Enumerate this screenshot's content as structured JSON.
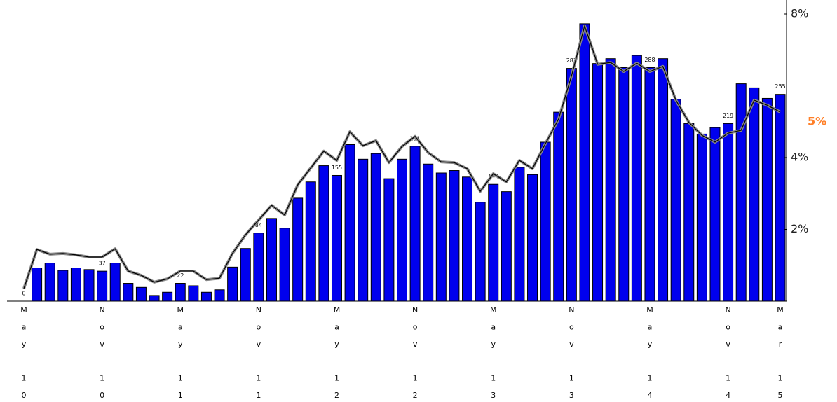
{
  "chart_data": {
    "type": "bar_line",
    "categories": [
      "May 10",
      null,
      null,
      null,
      null,
      null,
      "Nov 10",
      null,
      null,
      null,
      null,
      null,
      "May 11",
      null,
      null,
      null,
      null,
      null,
      "Nov 11",
      null,
      null,
      null,
      null,
      null,
      "May 12",
      null,
      null,
      null,
      null,
      null,
      "Nov 12",
      null,
      null,
      null,
      null,
      null,
      "May 13",
      null,
      null,
      null,
      null,
      null,
      "Nov 13",
      null,
      null,
      null,
      null,
      null,
      "May 14",
      null,
      null,
      null,
      null,
      null,
      "Nov 14",
      null,
      null,
      null,
      "Mar 15"
    ],
    "series": [
      {
        "color": "#0000ee",
        "values": [
          0,
          41,
          47,
          38,
          41,
          39,
          37,
          47,
          22,
          17,
          7,
          11,
          22,
          19,
          11,
          14,
          42,
          65,
          84,
          102,
          90,
          127,
          147,
          167,
          155,
          193,
          175,
          182,
          151,
          175,
          191,
          169,
          158,
          161,
          153,
          122,
          144,
          135,
          165,
          156,
          196,
          233,
          287,
          342,
          293,
          299,
          288,
          303,
          288,
          299,
          249,
          219,
          206,
          214,
          219,
          268,
          263,
          250,
          255
        ],
        "value_labels": [
          "0",
          null,
          null,
          null,
          null,
          null,
          "37",
          null,
          null,
          null,
          null,
          null,
          "22",
          null,
          null,
          null,
          null,
          null,
          "84",
          null,
          null,
          null,
          null,
          null,
          "155",
          null,
          null,
          null,
          null,
          null,
          "191",
          null,
          null,
          null,
          null,
          null,
          "144",
          null,
          null,
          null,
          null,
          null,
          "287",
          null,
          null,
          null,
          null,
          null,
          "288",
          null,
          null,
          null,
          null,
          null,
          "219",
          null,
          null,
          null,
          "255"
        ]
      },
      {
        "color": "#000000",
        "axis": "y2",
        "values": [
          0.35,
          1.44,
          1.31,
          1.33,
          1.29,
          1.23,
          1.23,
          1.46,
          0.84,
          0.72,
          0.53,
          0.62,
          0.84,
          0.84,
          0.6,
          0.64,
          1.33,
          1.85,
          2.26,
          2.67,
          2.4,
          3.24,
          3.71,
          4.18,
          3.92,
          4.72,
          4.33,
          4.47,
          3.86,
          4.31,
          4.59,
          4.14,
          3.88,
          3.86,
          3.69,
          3.06,
          3.55,
          3.32,
          3.92,
          3.69,
          4.39,
          5.07,
          6.28,
          7.67,
          6.6,
          6.65,
          6.4,
          6.63,
          6.4,
          6.54,
          5.6,
          4.98,
          4.62,
          4.43,
          4.68,
          4.76,
          5.6,
          5.46,
          5.27
        ]
      }
    ],
    "ylim": [
      0,
      354
    ],
    "y2lim": [
      0,
      8
    ],
    "y2ticks": [
      {
        "value": 2,
        "label": "2%"
      },
      {
        "value": 4,
        "label": "4%"
      },
      {
        "value": 8,
        "label": "8%"
      }
    ],
    "annotation": {
      "value": 5,
      "label": "5%",
      "color": "#ff7f27"
    }
  }
}
